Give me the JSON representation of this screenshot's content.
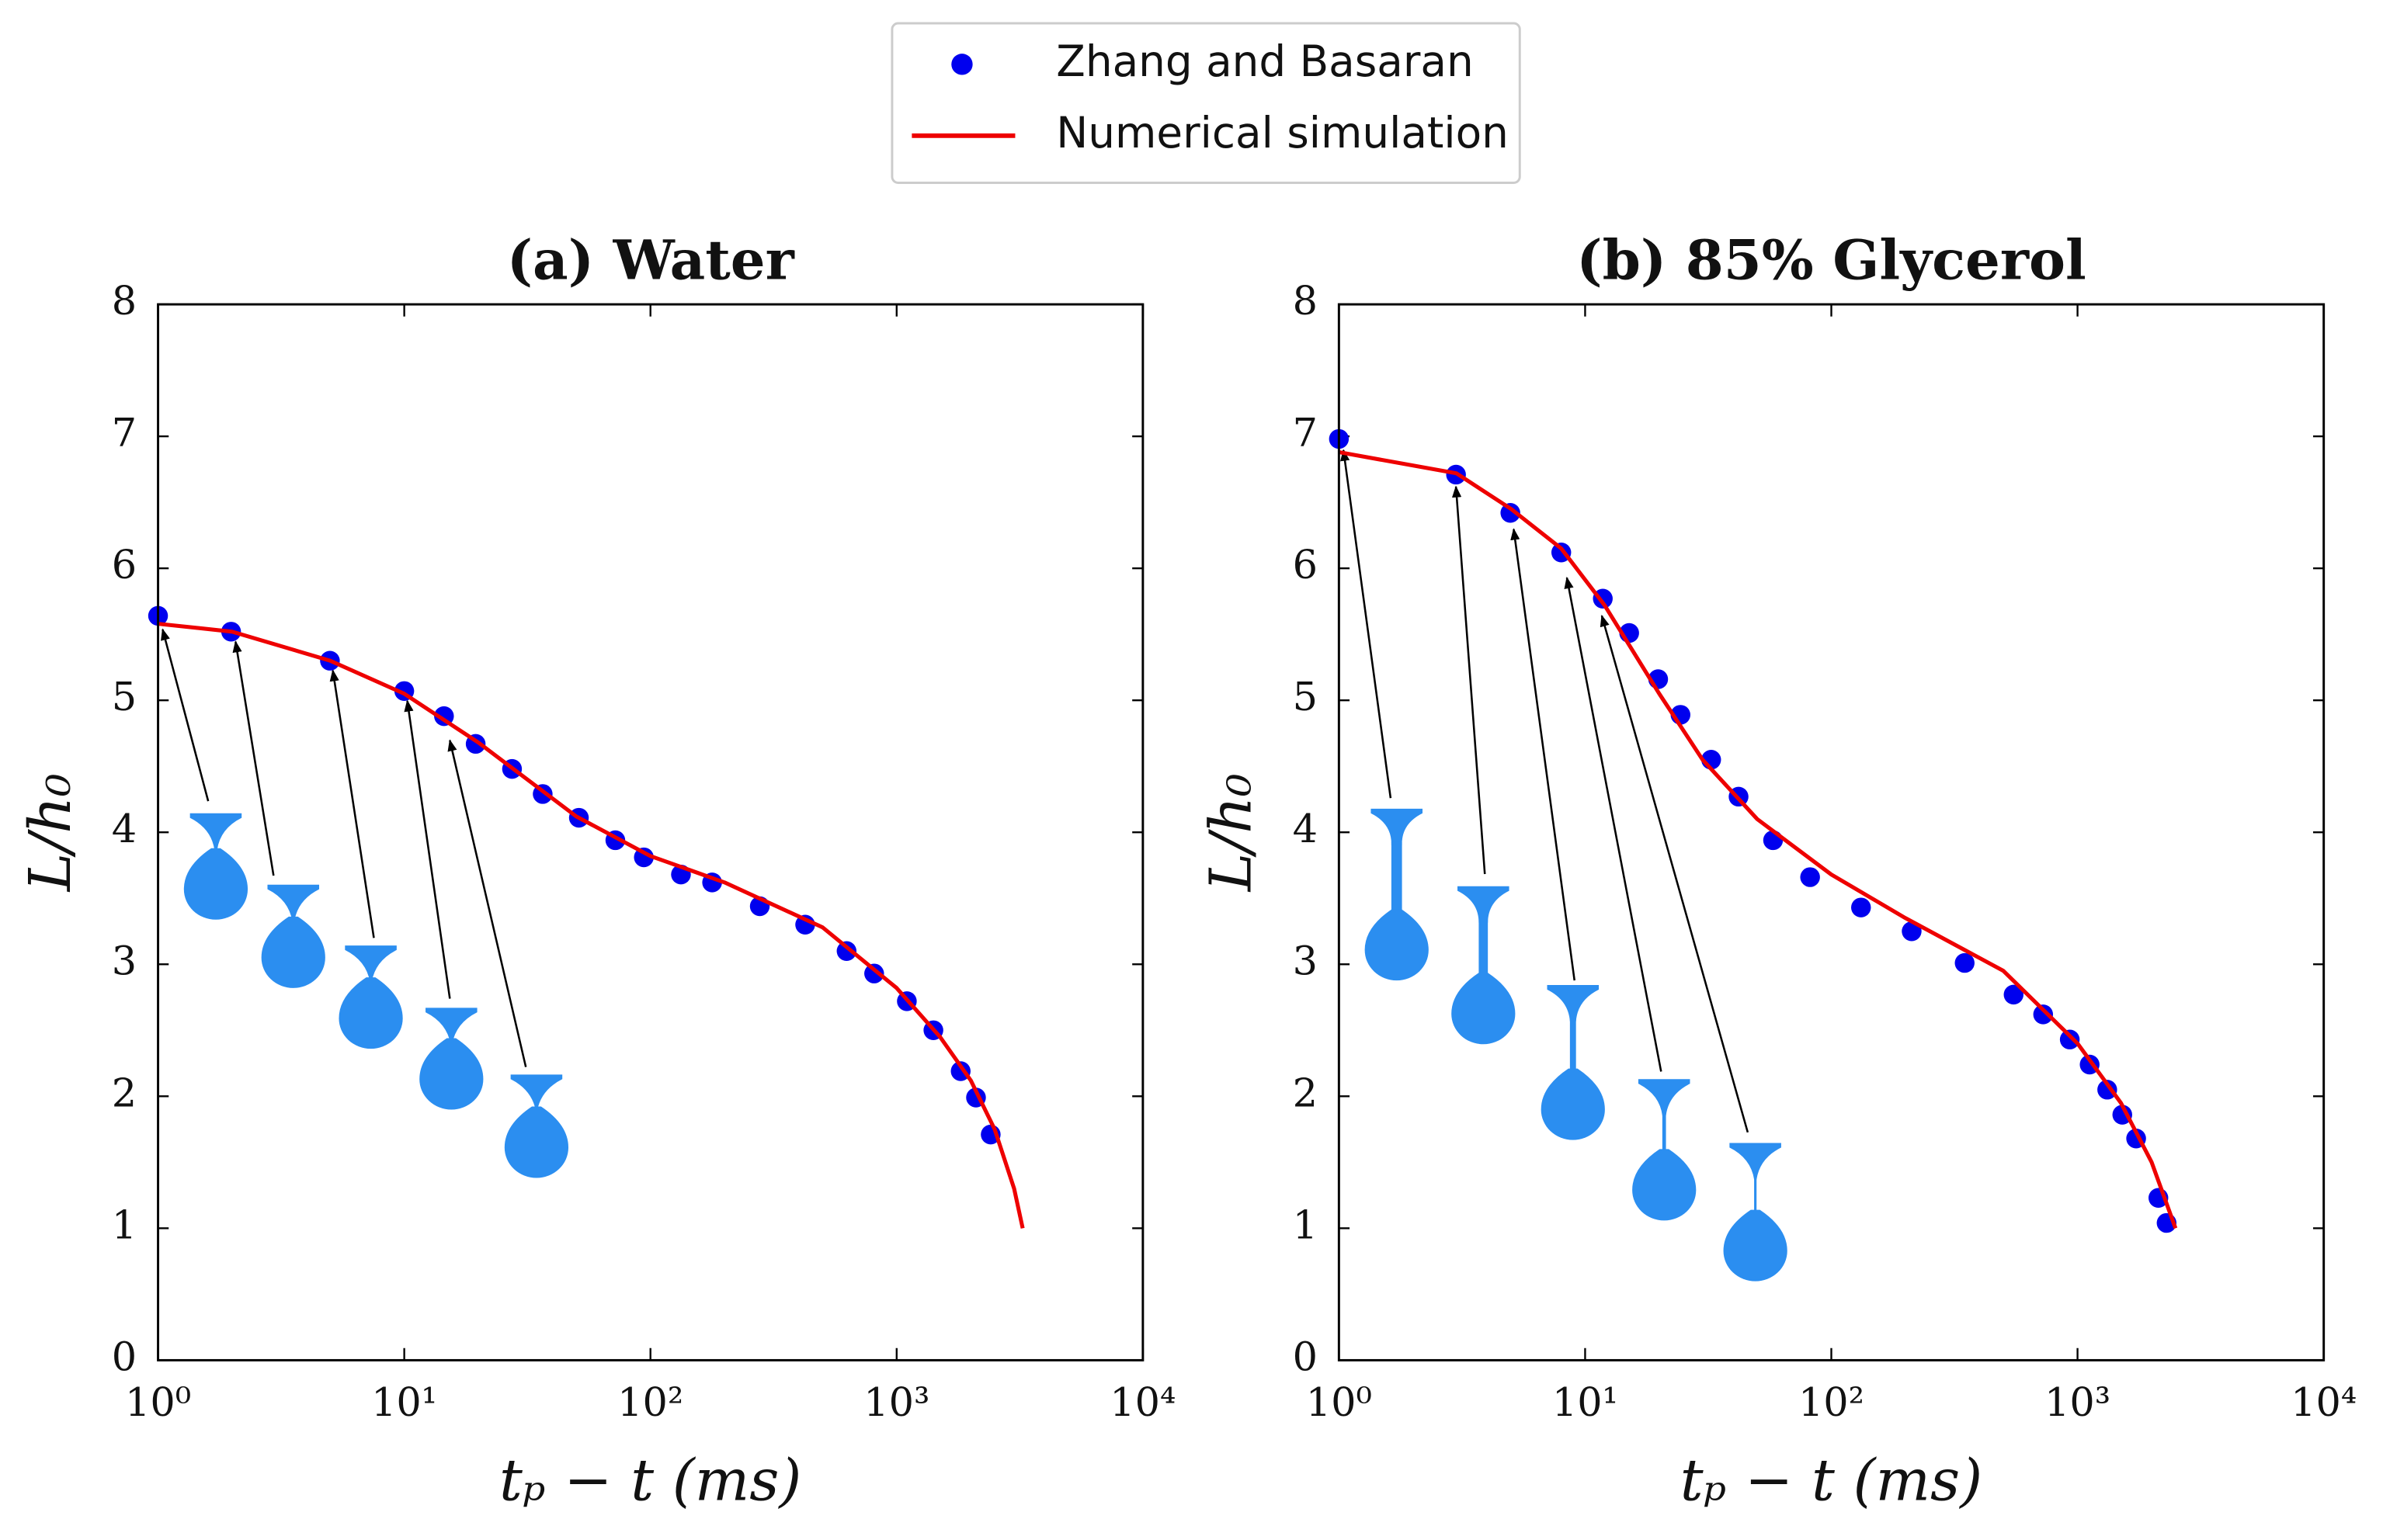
{
  "legend": "upper-center",
  "chart_data": [
    {
      "type": "line",
      "title": "(a) Water",
      "x_label": "tₚ − t (ms)",
      "y_label": "L/h₀",
      "xscale": "log",
      "xlim": [
        1,
        10000
      ],
      "xticks": [
        {
          "value": 1,
          "label": "10⁰"
        },
        {
          "value": 10,
          "label": "10¹"
        },
        {
          "value": 100,
          "label": "10²"
        },
        {
          "value": 1000,
          "label": "10³"
        },
        {
          "value": 10000,
          "label": "10⁴"
        }
      ],
      "ylim": [
        0,
        8
      ],
      "yticks": [
        0,
        1,
        2,
        3,
        4,
        5,
        6,
        7,
        8
      ],
      "series": [
        {
          "name": "Zhang and Basaran",
          "type": "scatter",
          "color": "#0000ee",
          "x": [
            1,
            1.98,
            4.99,
            10,
            14.5,
            19.5,
            27.4,
            36.5,
            51.2,
            72,
            94,
            133,
            178,
            278,
            425,
            626,
            810,
            1100,
            1410,
            1820,
            2100,
            2410
          ],
          "values": [
            5.64,
            5.52,
            5.3,
            5.07,
            4.88,
            4.67,
            4.48,
            4.29,
            4.11,
            3.94,
            3.81,
            3.68,
            3.62,
            3.44,
            3.3,
            3.1,
            2.93,
            2.72,
            2.5,
            2.19,
            1.99,
            1.71
          ]
        },
        {
          "name": "Numerical simulation",
          "type": "line",
          "color": "#ee0000",
          "x": [
            1,
            2,
            5,
            10,
            20,
            50,
            100,
            200,
            500,
            1000,
            1500,
            2000,
            2500,
            3000,
            3250
          ],
          "values": [
            5.58,
            5.52,
            5.3,
            5.05,
            4.68,
            4.12,
            3.82,
            3.62,
            3.28,
            2.82,
            2.45,
            2.12,
            1.75,
            1.3,
            1.0
          ]
        }
      ]
    },
    {
      "type": "line",
      "title": "(b) 85% Glycerol",
      "x_label": "tₚ − t (ms)",
      "y_label": "L/h₀",
      "xscale": "log",
      "xlim": [
        1,
        10000
      ],
      "xticks": [
        {
          "value": 1,
          "label": "10⁰"
        },
        {
          "value": 10,
          "label": "10¹"
        },
        {
          "value": 100,
          "label": "10²"
        },
        {
          "value": 1000,
          "label": "10³"
        },
        {
          "value": 10000,
          "label": "10⁴"
        }
      ],
      "ylim": [
        0,
        8
      ],
      "yticks": [
        0,
        1,
        2,
        3,
        4,
        5,
        6,
        7,
        8
      ],
      "series": [
        {
          "name": "Zhang and Basaran",
          "type": "scatter",
          "color": "#0000ee",
          "x": [
            1,
            2.99,
            4.97,
            8,
            11.8,
            15.1,
            19.8,
            24.4,
            32.5,
            42,
            58,
            82,
            132,
            212,
            348,
            550,
            725,
            930,
            1120,
            1320,
            1520,
            1730,
            2130,
            2300
          ],
          "values": [
            6.98,
            6.71,
            6.42,
            6.12,
            5.77,
            5.51,
            5.16,
            4.89,
            4.55,
            4.27,
            3.94,
            3.66,
            3.43,
            3.25,
            3.01,
            2.77,
            2.62,
            2.43,
            2.24,
            2.05,
            1.86,
            1.68,
            1.23,
            1.04
          ]
        },
        {
          "name": "Numerical simulation",
          "type": "line",
          "color": "#ee0000",
          "x": [
            1,
            3,
            5,
            8,
            12,
            20,
            30,
            50,
            100,
            200,
            500,
            1000,
            1500,
            2000,
            2500
          ],
          "values": [
            6.88,
            6.72,
            6.45,
            6.15,
            5.72,
            5.05,
            4.55,
            4.1,
            3.68,
            3.35,
            2.95,
            2.4,
            1.95,
            1.5,
            1.0
          ]
        }
      ]
    }
  ]
}
